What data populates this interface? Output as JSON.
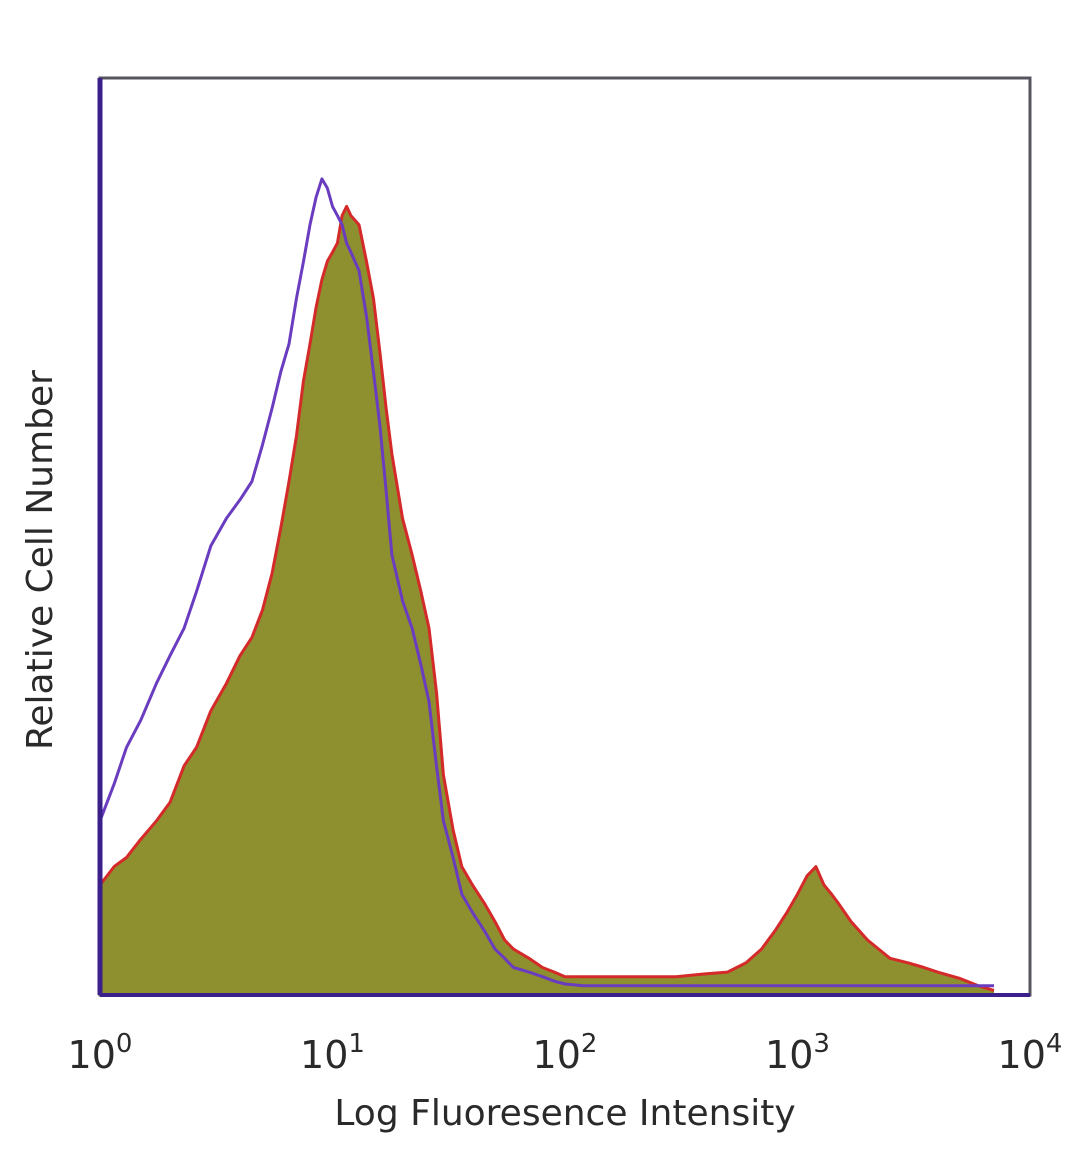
{
  "chart_data": {
    "type": "area",
    "xscale": "log",
    "xlim": [
      1,
      10000
    ],
    "xticks": [
      {
        "base": "10",
        "exp": "0",
        "value": 1
      },
      {
        "base": "10",
        "exp": "1",
        "value": 10
      },
      {
        "base": "10",
        "exp": "2",
        "value": 100
      },
      {
        "base": "10",
        "exp": "3",
        "value": 1000
      },
      {
        "base": "10",
        "exp": "4",
        "value": 10000
      }
    ],
    "xlabel": "Log Fluoresence Intensity",
    "ylabel": "Relative Cell Number",
    "ylim": [
      0,
      100
    ],
    "y_ticks_shown": false,
    "grid": false,
    "legend": "none",
    "series": [
      {
        "style": "filled",
        "fill_color": "#8e8f2e",
        "line_color": "#d42a2a",
        "x": [
          1,
          1.15,
          1.3,
          1.5,
          1.75,
          2,
          2.3,
          2.6,
          3,
          3.5,
          4,
          4.5,
          5,
          5.5,
          6,
          6.5,
          7,
          7.5,
          8,
          8.5,
          9,
          9.5,
          10,
          10.5,
          11,
          11.5,
          12,
          13,
          14,
          15,
          16,
          17,
          18,
          20,
          22,
          24,
          26,
          28,
          30,
          33,
          36,
          40,
          45,
          50,
          55,
          60,
          70,
          80,
          90,
          100,
          120,
          150,
          200,
          250,
          300,
          400,
          500,
          600,
          700,
          800,
          900,
          1000,
          1100,
          1200,
          1300,
          1400,
          1500,
          1700,
          2000,
          2500,
          3000,
          3500,
          4000,
          5000,
          6000,
          7000
        ],
        "y": [
          12,
          14,
          15,
          17,
          19,
          21,
          25,
          27,
          31,
          34,
          37,
          39,
          42,
          46,
          51,
          56,
          61,
          67,
          71,
          75,
          78,
          80,
          81,
          82,
          85,
          86,
          85,
          84,
          80,
          76,
          70,
          64,
          59,
          52,
          48,
          44,
          40,
          33,
          24,
          18,
          14,
          12,
          10,
          8,
          6,
          5,
          4,
          3,
          2.5,
          2,
          2,
          2,
          2,
          2,
          2,
          2.3,
          2.5,
          3.5,
          5,
          7,
          9,
          11,
          13,
          14,
          12,
          11,
          10,
          8,
          6,
          4,
          3.5,
          3,
          2.5,
          1.8,
          1,
          0.5
        ]
      },
      {
        "style": "line",
        "line_color": "#6a3cbf",
        "x": [
          1,
          1.15,
          1.3,
          1.5,
          1.75,
          2,
          2.3,
          2.6,
          3,
          3.5,
          4,
          4.5,
          5,
          5.5,
          6,
          6.5,
          7,
          7.5,
          8,
          8.5,
          9,
          9.5,
          10,
          10.5,
          11,
          11.5,
          12,
          13,
          14,
          15,
          16,
          17,
          18,
          20,
          22,
          24,
          26,
          28,
          30,
          33,
          36,
          40,
          45,
          50,
          55,
          60,
          70,
          80,
          90,
          100,
          120,
          150,
          200,
          300,
          500,
          700,
          1000,
          2000,
          5000,
          7000
        ],
        "y": [
          19,
          23,
          27,
          30,
          34,
          37,
          40,
          44,
          49,
          52,
          54,
          56,
          60,
          64,
          68,
          71,
          76,
          80,
          84,
          87,
          89,
          88,
          86,
          85,
          84,
          82,
          81,
          79,
          74,
          68,
          62,
          55,
          48,
          43,
          40,
          36,
          32,
          25,
          19,
          15,
          11,
          9,
          7,
          5,
          4,
          3,
          2.5,
          2,
          1.5,
          1.2,
          1,
          1,
          1,
          1,
          1,
          1,
          1,
          1,
          1,
          1
        ]
      }
    ]
  }
}
